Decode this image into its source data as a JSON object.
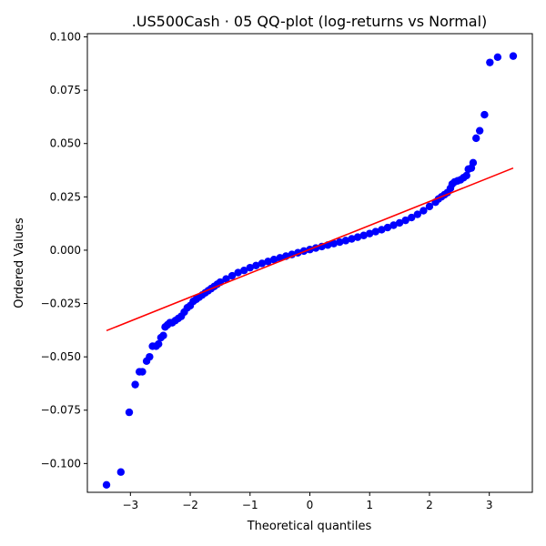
{
  "chart_data": {
    "type": "scatter",
    "title": ".US500Cash · 05 QQ-plot (log-returns vs Normal)",
    "xlabel": "Theoretical quantiles",
    "ylabel": "Ordered Values",
    "xlim": [
      -3.72,
      3.72
    ],
    "ylim": [
      -0.1135,
      0.1015
    ],
    "x_ticks": [
      -3,
      -2,
      -1,
      0,
      1,
      2,
      3
    ],
    "x_tick_labels": [
      "−3",
      "−2",
      "−1",
      "0",
      "1",
      "2",
      "3"
    ],
    "y_ticks": [
      0.1,
      0.075,
      0.05,
      0.025,
      0.0,
      -0.025,
      -0.05,
      -0.075,
      -0.1
    ],
    "y_tick_labels": [
      "0.100",
      "0.075",
      "0.050",
      "0.025",
      "0.000",
      "−0.025",
      "−0.050",
      "−0.075",
      "−0.100"
    ],
    "grid": false,
    "series": [
      {
        "kind": "points",
        "color": "#0000ff",
        "points": [
          [
            -3.4,
            -0.11
          ],
          [
            -3.16,
            -0.104
          ],
          [
            -3.02,
            -0.076
          ],
          [
            -2.92,
            -0.063
          ],
          [
            -2.85,
            -0.057
          ],
          [
            -2.8,
            -0.057
          ],
          [
            -2.73,
            -0.052
          ],
          [
            -2.68,
            -0.05
          ],
          [
            -2.63,
            -0.045
          ],
          [
            -2.57,
            -0.045
          ],
          [
            -2.53,
            -0.044
          ],
          [
            -2.49,
            -0.041
          ],
          [
            -2.45,
            -0.04
          ],
          [
            -2.42,
            -0.036
          ],
          [
            -2.38,
            -0.035
          ],
          [
            -2.34,
            -0.034
          ],
          [
            -2.3,
            -0.034
          ],
          [
            -2.25,
            -0.033
          ],
          [
            -2.2,
            -0.032
          ],
          [
            -2.15,
            -0.031
          ],
          [
            -2.1,
            -0.029
          ],
          [
            -2.05,
            -0.027
          ],
          [
            -2.0,
            -0.026
          ],
          [
            -1.95,
            -0.024
          ],
          [
            -1.9,
            -0.023
          ],
          [
            -1.85,
            -0.022
          ],
          [
            -1.8,
            -0.021
          ],
          [
            -1.75,
            -0.02
          ],
          [
            -1.7,
            -0.019
          ],
          [
            -1.65,
            -0.018
          ],
          [
            -1.6,
            -0.017
          ],
          [
            -1.55,
            -0.016
          ],
          [
            -1.5,
            -0.015
          ],
          [
            -1.4,
            -0.0135
          ],
          [
            -1.3,
            -0.012
          ],
          [
            -1.2,
            -0.0105
          ],
          [
            -1.1,
            -0.0095
          ],
          [
            -1.0,
            -0.0082
          ],
          [
            -0.9,
            -0.0072
          ],
          [
            -0.8,
            -0.0062
          ],
          [
            -0.7,
            -0.0053
          ],
          [
            -0.6,
            -0.0044
          ],
          [
            -0.5,
            -0.0036
          ],
          [
            -0.4,
            -0.0028
          ],
          [
            -0.3,
            -0.002
          ],
          [
            -0.2,
            -0.0012
          ],
          [
            -0.1,
            -0.0004
          ],
          [
            0.0,
            0.0003
          ],
          [
            0.1,
            0.001
          ],
          [
            0.2,
            0.0017
          ],
          [
            0.3,
            0.0024
          ],
          [
            0.4,
            0.0031
          ],
          [
            0.5,
            0.0038
          ],
          [
            0.6,
            0.0045
          ],
          [
            0.7,
            0.0053
          ],
          [
            0.8,
            0.0061
          ],
          [
            0.9,
            0.0069
          ],
          [
            1.0,
            0.0078
          ],
          [
            1.1,
            0.0087
          ],
          [
            1.2,
            0.0096
          ],
          [
            1.3,
            0.0106
          ],
          [
            1.4,
            0.0117
          ],
          [
            1.5,
            0.0128
          ],
          [
            1.6,
            0.014
          ],
          [
            1.7,
            0.0153
          ],
          [
            1.8,
            0.0168
          ],
          [
            1.9,
            0.0185
          ],
          [
            2.0,
            0.0205
          ],
          [
            2.1,
            0.0225
          ],
          [
            2.15,
            0.024
          ],
          [
            2.2,
            0.025
          ],
          [
            2.25,
            0.026
          ],
          [
            2.3,
            0.027
          ],
          [
            2.35,
            0.029
          ],
          [
            2.38,
            0.031
          ],
          [
            2.42,
            0.032
          ],
          [
            2.47,
            0.0325
          ],
          [
            2.52,
            0.033
          ],
          [
            2.57,
            0.034
          ],
          [
            2.62,
            0.035
          ],
          [
            2.65,
            0.038
          ],
          [
            2.7,
            0.0385
          ],
          [
            2.73,
            0.041
          ],
          [
            2.78,
            0.0525
          ],
          [
            2.84,
            0.056
          ],
          [
            2.92,
            0.0635
          ],
          [
            3.01,
            0.088
          ],
          [
            3.14,
            0.0905
          ],
          [
            3.4,
            0.091
          ]
        ]
      },
      {
        "kind": "line",
        "color": "#ff0000",
        "points": [
          [
            -3.4,
            -0.0377
          ],
          [
            3.4,
            0.0385
          ]
        ]
      }
    ]
  }
}
